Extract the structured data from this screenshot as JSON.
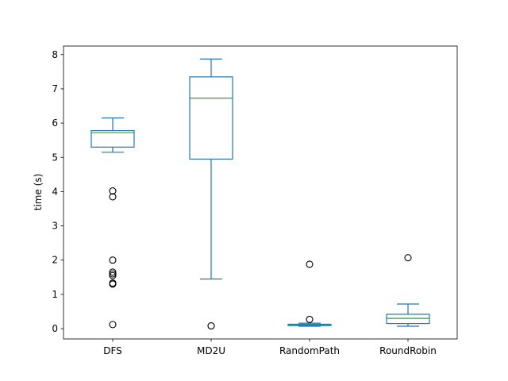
{
  "chart_data": {
    "type": "box",
    "title": "",
    "xlabel": "",
    "ylabel": "time (s)",
    "ylim": [
      -0.3,
      8.25
    ],
    "yticks": [
      0,
      1,
      2,
      3,
      4,
      5,
      6,
      7,
      8
    ],
    "grid": false,
    "legend": "none",
    "colors": {
      "box": "#1f77b4",
      "median": "#2ca02c",
      "flier": "#000000"
    },
    "categories": [
      "DFS",
      "MD2U",
      "RandomPath",
      "RoundRobin"
    ],
    "boxes": [
      {
        "name": "DFS",
        "whisker_low": 5.15,
        "q1": 5.3,
        "median": 5.72,
        "q3": 5.78,
        "whisker_high": 6.15,
        "fliers": [
          4.02,
          3.85,
          2.0,
          1.65,
          1.6,
          1.55,
          1.33,
          1.3,
          0.12
        ]
      },
      {
        "name": "MD2U",
        "whisker_low": 1.45,
        "q1": 4.95,
        "median": 6.73,
        "q3": 7.35,
        "whisker_high": 7.87,
        "fliers": [
          0.08
        ]
      },
      {
        "name": "RandomPath",
        "whisker_low": 0.07,
        "q1": 0.09,
        "median": 0.11,
        "q3": 0.13,
        "whisker_high": 0.16,
        "fliers": [
          1.88,
          0.27
        ]
      },
      {
        "name": "RoundRobin",
        "whisker_low": 0.07,
        "q1": 0.15,
        "median": 0.3,
        "q3": 0.42,
        "whisker_high": 0.72,
        "fliers": [
          2.07
        ]
      }
    ]
  }
}
